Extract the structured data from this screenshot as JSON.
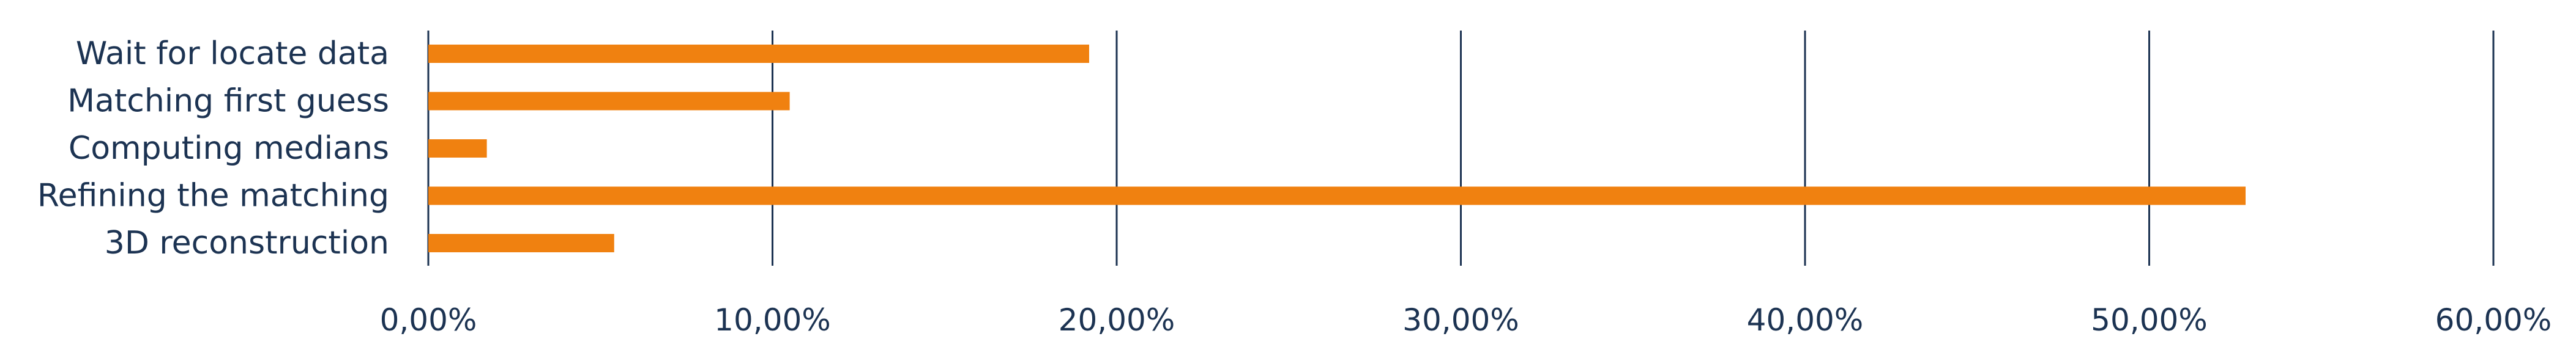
{
  "chart_data": {
    "type": "bar",
    "orientation": "horizontal",
    "title": "",
    "xlabel": "",
    "ylabel": "",
    "categories": [
      "Wait for locate data",
      "Matching first guess",
      "Computing medians",
      "Refining the matching",
      "3D reconstruction"
    ],
    "values": [
      19.2,
      10.5,
      1.7,
      52.8,
      5.4
    ],
    "xlim": [
      0,
      60
    ],
    "x_ticks": [
      0,
      10,
      20,
      30,
      40,
      50,
      60
    ],
    "x_tick_labels": [
      "0,00%",
      "10,00%",
      "20,00%",
      "30,00%",
      "40,00%",
      "50,00%",
      "60,00%"
    ],
    "grid": "vertical",
    "legend": "none",
    "bar_color": "#f08110",
    "grid_color": "#1c3352",
    "text_color": "#1c3352"
  }
}
